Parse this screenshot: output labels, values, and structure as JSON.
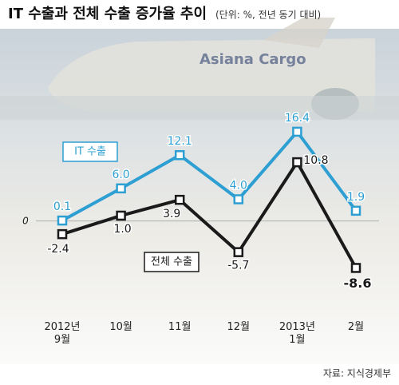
{
  "chart_data": {
    "type": "line",
    "title": "IT 수출과 전체 수출 증가율 추이",
    "subtitle": "(단위: %, 전년 동기 대비)",
    "source": "자료: 지식경제부",
    "categories": [
      "2012년\n9월",
      "10월",
      "11월",
      "12월",
      "2013년\n1월",
      "2월"
    ],
    "series": [
      {
        "name": "IT 수출",
        "color": "#2e9fd2",
        "values": [
          0.1,
          6.0,
          12.1,
          4.0,
          16.4,
          1.9
        ],
        "value_labels": [
          "0.1",
          "6.0",
          "12.1",
          "4.0",
          "16.4",
          "1.9"
        ]
      },
      {
        "name": "전체 수출",
        "color": "#1a1a1a",
        "values": [
          -2.4,
          1.0,
          3.9,
          -5.7,
          10.8,
          -8.6
        ],
        "value_labels": [
          "-2.4",
          "1.0",
          "3.9",
          "-5.7",
          "10.8",
          "-8.6"
        ]
      }
    ],
    "ylim": [
      -10,
      18
    ],
    "yticks": [
      0
    ],
    "grid": true
  }
}
